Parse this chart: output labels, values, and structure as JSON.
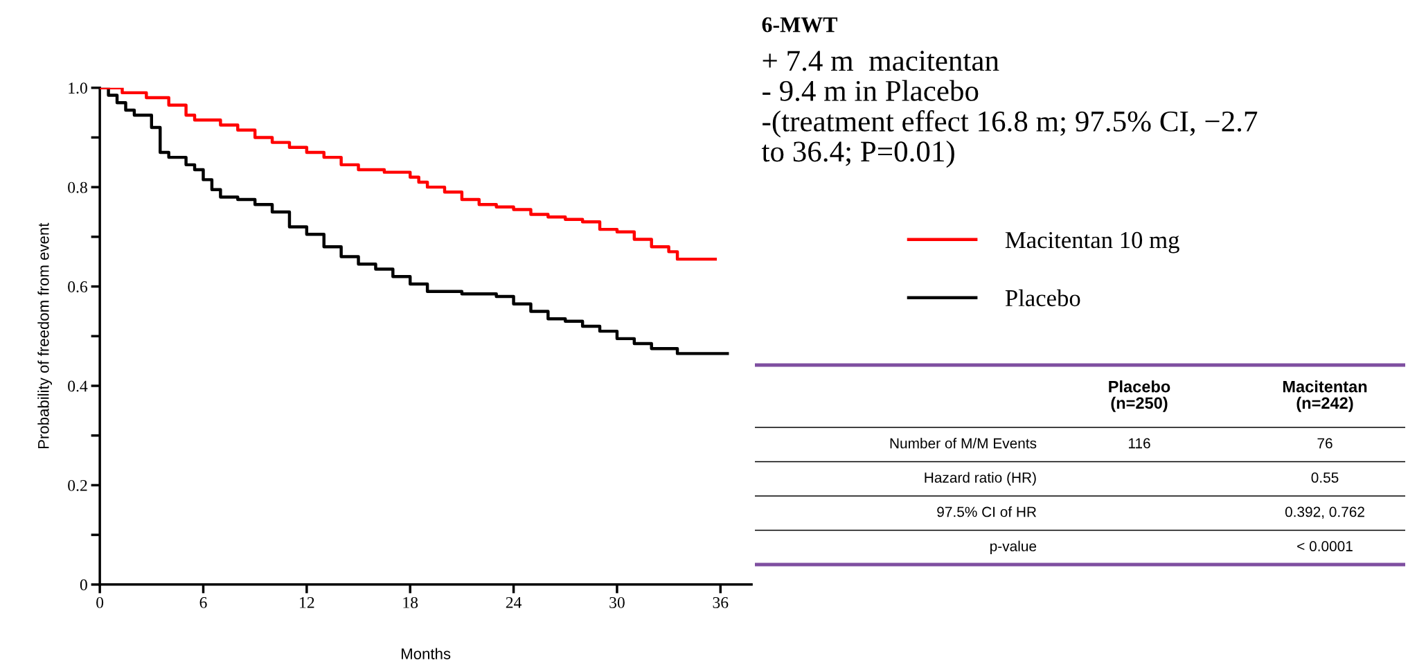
{
  "chart_data": {
    "type": "step",
    "title": "6-MWT",
    "subtitle": "+ 7.4 m  macitentan\n- 9.4 m in Placebo\n-(treatment effect 16.8 m; 97.5% CI, −2.7\nto 36.4; P=0.01)",
    "xlabel": "Months",
    "ylabel": "Probability of freedom from event",
    "series": [
      {
        "name": "Macitentan 10 mg",
        "color": "#ff0000",
        "x": [
          0,
          1.3,
          2.7,
          4,
          5,
          5.5,
          7,
          8,
          9,
          10,
          11,
          12,
          13,
          14,
          15,
          16.5,
          18,
          18.5,
          19,
          20,
          21,
          22,
          23,
          24,
          25,
          26,
          27,
          28,
          29,
          30,
          31,
          32,
          33,
          33.5,
          35.7
        ],
        "values": [
          1.0,
          0.99,
          0.98,
          0.965,
          0.945,
          0.935,
          0.925,
          0.915,
          0.9,
          0.89,
          0.88,
          0.87,
          0.86,
          0.845,
          0.835,
          0.83,
          0.82,
          0.81,
          0.8,
          0.79,
          0.775,
          0.765,
          0.76,
          0.755,
          0.745,
          0.74,
          0.735,
          0.73,
          0.715,
          0.71,
          0.695,
          0.68,
          0.67,
          0.655,
          0.655
        ]
      },
      {
        "name": "Placebo",
        "color": "#000000",
        "x": [
          0,
          0.5,
          1,
          1.5,
          2,
          3,
          3.5,
          4,
          5,
          5.5,
          6,
          6.5,
          7,
          8,
          9,
          10,
          11,
          12,
          13,
          14,
          15,
          16,
          17,
          18,
          19,
          21,
          23,
          24,
          25,
          26,
          27,
          28,
          29,
          30,
          31,
          32,
          33.5,
          36.4
        ],
        "values": [
          1.0,
          0.985,
          0.97,
          0.955,
          0.945,
          0.92,
          0.87,
          0.86,
          0.845,
          0.835,
          0.815,
          0.795,
          0.78,
          0.775,
          0.765,
          0.75,
          0.72,
          0.705,
          0.68,
          0.66,
          0.645,
          0.635,
          0.62,
          0.605,
          0.59,
          0.585,
          0.58,
          0.565,
          0.55,
          0.535,
          0.53,
          0.52,
          0.51,
          0.495,
          0.485,
          0.475,
          0.465,
          0.465
        ]
      }
    ],
    "xlim": [
      0,
      37.8
    ],
    "xticks": [
      0,
      6,
      12,
      18,
      24,
      30,
      36
    ],
    "ylim": [
      0,
      1.0
    ],
    "yticks": [
      0,
      {
        "value": 0.1,
        "label": null
      },
      0.2,
      {
        "value": 0.3,
        "label": null
      },
      0.4,
      {
        "value": 0.5,
        "label": null
      },
      0.6,
      {
        "value": 0.7,
        "label": null
      },
      0.8,
      {
        "value": 0.9,
        "label": null
      },
      {
        "value": 1.0,
        "label": "1.0"
      }
    ],
    "legend": "right",
    "grid": false,
    "line_style": "solid",
    "marker": "none",
    "annotations": [
      null,
      "Placebo\n(n=250)",
      "Macitentan\n(n=242)",
      "Number of M/M Events",
      "116",
      "76",
      "Hazard ratio (HR)",
      null,
      "0.55",
      "97.5% CI of HR",
      null,
      "0.392, 0.762",
      "p-value",
      null,
      "< 0.0001"
    ]
  }
}
